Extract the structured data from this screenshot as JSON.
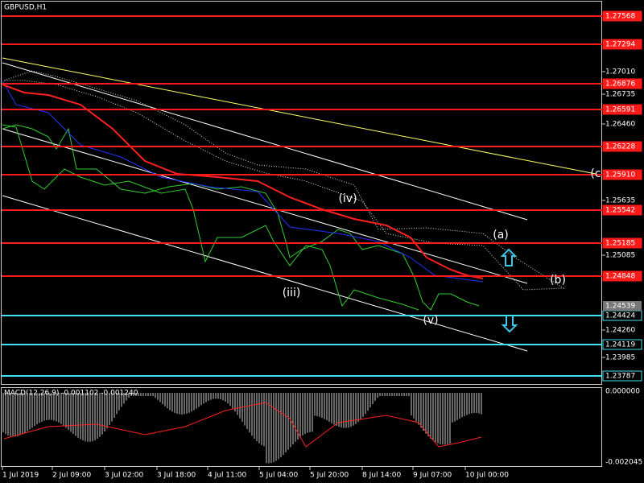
{
  "header": {
    "title": "GBPUSD,H1"
  },
  "price_axis": {
    "ticks": [
      "1.27010",
      "1.26735",
      "1.26460",
      "1.25635",
      "1.25085",
      "1.24260",
      "1.23985"
    ],
    "red_levels": [
      "1.27568",
      "1.27294",
      "1.26876",
      "1.26591",
      "1.26228",
      "1.25910",
      "1.25542",
      "1.25185",
      "1.24848"
    ],
    "current_price": "1.24539",
    "cyan_levels": [
      "1.24424",
      "1.24119",
      "1.23787"
    ]
  },
  "annotations": [
    "(iv)",
    "(iii)",
    "(v)",
    "(a)",
    "(b)",
    "(c"
  ],
  "macd": {
    "title": "MACD(12,26,9) -0.001102 -0.001240",
    "top_label": "0.000000",
    "bottom_label": "-0.002045"
  },
  "time_axis": [
    "1 Jul 2019",
    "2 Jul 09:00",
    "3 Jul 02:00",
    "3 Jul 18:00",
    "4 Jul 11:00",
    "5 Jul 04:00",
    "5 Jul 20:00",
    "8 Jul 14:00",
    "9 Jul 07:00",
    "10 Jul 00:00"
  ]
}
